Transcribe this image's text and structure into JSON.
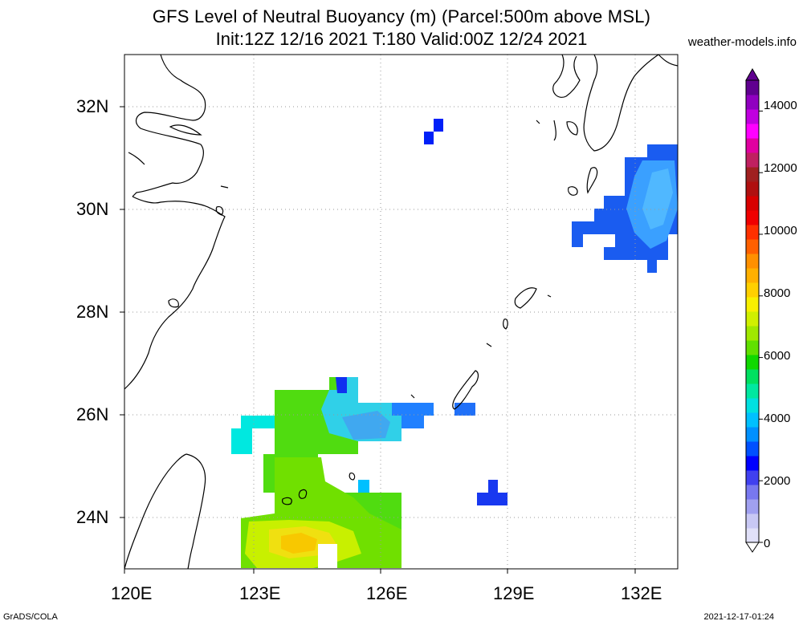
{
  "header": {
    "title_line1": "GFS Level of Neutral Buoyancy (m) (Parcel:500m above MSL)",
    "title_line2": "Init:12Z 12/16 2021 T:180 Valid:00Z 12/24 2021",
    "credit": "weather-models.info"
  },
  "footer": {
    "left": "GrADS/COLA",
    "right": "2021-12-17-01:24"
  },
  "map": {
    "lat_labels": [
      "32N",
      "30N",
      "28N",
      "26N",
      "24N"
    ],
    "lon_labels": [
      "120E",
      "123E",
      "126E",
      "129E",
      "132E"
    ],
    "lat_values": [
      32,
      30,
      28,
      26,
      24
    ],
    "lon_values": [
      120,
      123,
      126,
      129,
      132
    ],
    "lon_range": [
      120,
      133
    ],
    "lat_range": [
      23,
      33
    ],
    "grid": "dotted"
  },
  "colorbar": {
    "labels": [
      "14000",
      "12000",
      "10000",
      "8000",
      "6000",
      "4000",
      "2000",
      "0"
    ],
    "values": [
      14000,
      12000,
      10000,
      8000,
      6000,
      4000,
      2000,
      0
    ],
    "range": [
      0,
      15000
    ],
    "colors": [
      "#e0e0f8",
      "#c8c8f4",
      "#a0a0f0",
      "#7878f0",
      "#4040f0",
      "#0000ff",
      "#0050ff",
      "#0090ff",
      "#00c0ff",
      "#00e0e0",
      "#00e8a0",
      "#00e060",
      "#10d800",
      "#60e000",
      "#a0e800",
      "#d0f000",
      "#f8f000",
      "#ffd000",
      "#ffb000",
      "#ff9000",
      "#ff6000",
      "#ff3000",
      "#f00000",
      "#d80000",
      "#b01010",
      "#a02020",
      "#c02060",
      "#e000a0",
      "#ff00ff",
      "#c000e0",
      "#9000c0",
      "#600090"
    ]
  }
}
